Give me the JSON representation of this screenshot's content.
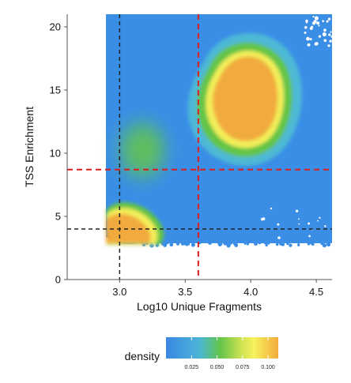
{
  "chart_data": {
    "type": "heatmap",
    "title": "",
    "xlabel": "Log10 Unique Fragments",
    "ylabel": "TSS Enrichment",
    "xlim": [
      2.6,
      4.62
    ],
    "ylim": [
      0,
      21
    ],
    "x_ticks": [
      {
        "value": 3.0,
        "label": "3.0"
      },
      {
        "value": 3.5,
        "label": "3.5"
      },
      {
        "value": 4.0,
        "label": "4.0"
      },
      {
        "value": 4.5,
        "label": "4.5"
      }
    ],
    "y_ticks": [
      {
        "value": 0,
        "label": "0"
      },
      {
        "value": 5,
        "label": "5"
      },
      {
        "value": 10,
        "label": "10"
      },
      {
        "value": 15,
        "label": "15"
      },
      {
        "value": 20,
        "label": "20"
      }
    ],
    "grid": false,
    "data_extent": {
      "x": [
        3.0,
        4.62
      ],
      "y": [
        2.8,
        21
      ]
    },
    "density_clusters": [
      {
        "x": 3.98,
        "y": 14.5,
        "peak_density": 0.1
      },
      {
        "x": 3.1,
        "y": 3.9,
        "peak_density": 0.1
      },
      {
        "x": 3.3,
        "y": 10.0,
        "peak_density": 0.05
      }
    ],
    "threshold_lines": [
      {
        "orientation": "vertical",
        "value": 3.0,
        "color": "#222222",
        "style": "dashed"
      },
      {
        "orientation": "horizontal",
        "value": 4.0,
        "color": "#222222",
        "style": "dashed"
      },
      {
        "orientation": "vertical",
        "value": 3.6,
        "color": "#dd1c1c",
        "style": "dashed"
      },
      {
        "orientation": "horizontal",
        "value": 8.7,
        "color": "#dd1c1c",
        "style": "dashed"
      }
    ],
    "legend": {
      "title": "density",
      "placement": "bottom",
      "ticks": [
        "0.025",
        "0.050",
        "0.075",
        "0.100"
      ],
      "tick_values": [
        0.025,
        0.05,
        0.075,
        0.1
      ],
      "range": [
        0.0,
        0.11
      ]
    },
    "colors": {
      "low": "#3b8ee6",
      "mid_low": "#4fb8d4",
      "mid": "#6cc64a",
      "mid_high": "#f6f25c",
      "high": "#f2aa3c"
    }
  }
}
